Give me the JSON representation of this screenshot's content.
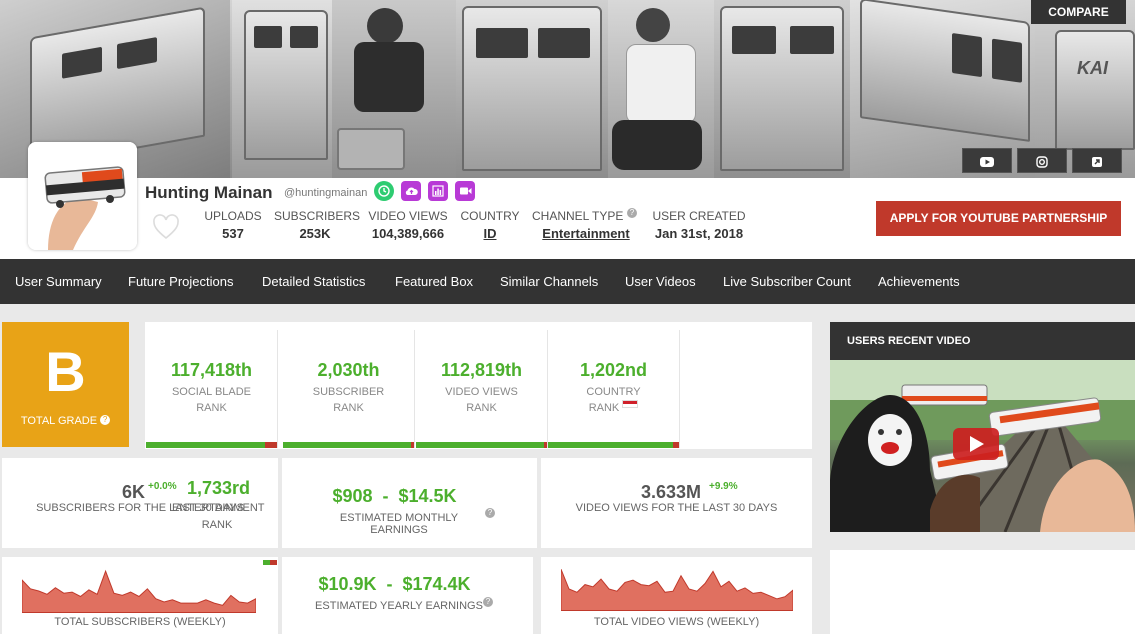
{
  "banner": {
    "compare_label": "COMPARE",
    "social": [
      "youtube-icon",
      "instagram-icon",
      "external-link-icon"
    ],
    "logo_text": "KAI"
  },
  "channel": {
    "name": "Hunting Mainan",
    "handle": "@huntingmainan",
    "badges": [
      {
        "icon": "clock-icon",
        "color": "#2ecc71"
      },
      {
        "icon": "upload-cloud-icon",
        "color": "#b83ad6"
      },
      {
        "icon": "bar-chart-icon",
        "color": "#b83ad6"
      },
      {
        "icon": "video-camera-icon",
        "color": "#b83ad6"
      }
    ]
  },
  "stats": {
    "uploads_label": "UPLOADS",
    "uploads": "537",
    "subscribers_label": "SUBSCRIBERS",
    "subscribers": "253K",
    "views_label": "VIDEO VIEWS",
    "views": "104,389,666",
    "country_label": "COUNTRY",
    "country": "ID",
    "type_label": "CHANNEL TYPE",
    "type": "Entertainment",
    "created_label": "USER CREATED",
    "created": "Jan 31st, 2018"
  },
  "apply_label": "APPLY FOR YOUTUBE PARTNERSHIP",
  "nav": [
    "User Summary",
    "Future Projections",
    "Detailed Statistics",
    "Featured Box",
    "Similar Channels",
    "User Videos",
    "Live Subscriber Count",
    "Achievements"
  ],
  "grade": {
    "letter": "B",
    "label": "TOTAL GRADE"
  },
  "ranks": [
    {
      "value": "117,418th",
      "label1": "SOCIAL BLADE",
      "label2": "RANK"
    },
    {
      "value": "2,030th",
      "label1": "SUBSCRIBER",
      "label2": "RANK"
    },
    {
      "value": "112,819th",
      "label1": "VIDEO VIEWS",
      "label2": "RANK"
    },
    {
      "value": "1,202nd",
      "label1": "COUNTRY",
      "label2": "RANK"
    }
  ],
  "mid": {
    "subs_30": "6K",
    "subs_30_change": "+0.0%",
    "subs_30_label": "SUBSCRIBERS FOR THE LAST 30 DAYS",
    "ent_rank": "1,733rd",
    "ent_label1": "ENTERTAINMENT",
    "ent_label2": "RANK",
    "monthly_earnings": "$908  -  $14.5K",
    "monthly_label": "ESTIMATED MONTHLY EARNINGS",
    "views_30": "3.633M",
    "views_30_change": "+9.9%",
    "views_30_label": "VIDEO VIEWS FOR THE LAST 30 DAYS"
  },
  "bottom": {
    "subs_weekly_label": "TOTAL SUBSCRIBERS (WEEKLY)",
    "yearly_earnings": "$10.9K  -  $174.4K",
    "yearly_label": "ESTIMATED YEARLY EARNINGS",
    "views_weekly_label": "TOTAL VIDEO VIEWS (WEEKLY)"
  },
  "chart_data": [
    {
      "type": "area",
      "values": [
        30,
        22,
        20,
        17,
        23,
        18,
        19,
        15,
        21,
        17,
        38,
        18,
        16,
        19,
        15,
        22,
        13,
        10,
        12,
        9,
        9,
        9,
        12,
        9,
        7,
        16,
        10,
        9,
        13
      ]
    },
    {
      "type": "area",
      "values": [
        38,
        20,
        17,
        24,
        22,
        29,
        20,
        18,
        26,
        28,
        24,
        23,
        27,
        17,
        18,
        32,
        20,
        18,
        25,
        36,
        22,
        27,
        18,
        21,
        16,
        17,
        14,
        11,
        13,
        19
      ]
    }
  ],
  "recent": {
    "title": "USERS RECENT VIDEO"
  },
  "colors": {
    "green": "#4caf2d",
    "red": "#c0392b",
    "grade": "#e8a317",
    "nav": "#333333"
  }
}
